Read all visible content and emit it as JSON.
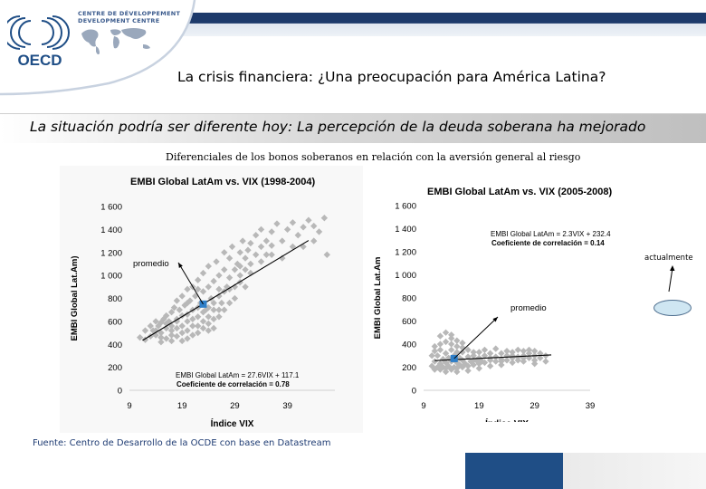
{
  "header": {
    "logo_text": "OECD",
    "centre_line1": "CENTRE DE DÉVELOPPEMENT",
    "centre_line2": "DEVELOPMENT CENTRE",
    "title": "La crisis financiera: ¿Una preocupación para América Latina?",
    "subtitle": "La situación podría ser diferente hoy:  La percepción de la deuda soberana ha mejorado"
  },
  "caption": "Diferenciales de los bonos soberanos en relación con la aversión general al riesgo",
  "source": "Fuente:  Centro de Desarrollo de la OCDE con base en Datastream",
  "annotation": {
    "now_label": "actualmente"
  },
  "colors": {
    "navy": "#1f4e86",
    "points": "#b8b8b8",
    "mean": "#2f7fc8",
    "line": "#000000"
  },
  "chart_data": [
    {
      "type": "scatter",
      "title": "EMBI Global LatAm vs.  VIX (1998-2004)",
      "xlabel": "Índice VIX",
      "ylabel": "EMBI Global Lat.Am)",
      "xlim": [
        9,
        48
      ],
      "ylim": [
        0,
        1600
      ],
      "xticks": [
        9,
        19,
        29,
        39
      ],
      "yticks": [
        0,
        200,
        400,
        600,
        800,
        1000,
        1200,
        1400,
        1600
      ],
      "ytick_labels": [
        "0",
        "200",
        "400",
        "600",
        "800",
        "1 000",
        "1 200",
        "1 400",
        "1 600"
      ],
      "regression": {
        "slope": 27.6,
        "intercept": 117.1,
        "x_range": [
          11.5,
          43
        ]
      },
      "equation_label": "EMBI Global LatAm = 27.6VIX + 117.1",
      "correlation_label": "Coeficiente de correlación = 0.78",
      "mean_point": {
        "x": 23,
        "y": 750,
        "label": "promedio"
      },
      "points": [
        [
          12,
          440
        ],
        [
          13,
          470
        ],
        [
          13.5,
          520
        ],
        [
          14,
          480
        ],
        [
          14.5,
          560
        ],
        [
          15,
          500
        ],
        [
          15,
          590
        ],
        [
          15.5,
          620
        ],
        [
          16,
          540
        ],
        [
          16,
          650
        ],
        [
          16.5,
          600
        ],
        [
          17,
          680
        ],
        [
          17,
          560
        ],
        [
          17.5,
          720
        ],
        [
          18,
          620
        ],
        [
          18,
          780
        ],
        [
          18.5,
          700
        ],
        [
          19,
          650
        ],
        [
          19,
          820
        ],
        [
          19.5,
          740
        ],
        [
          20,
          600
        ],
        [
          20,
          880
        ],
        [
          20.5,
          780
        ],
        [
          21,
          700
        ],
        [
          21,
          900
        ],
        [
          21.5,
          820
        ],
        [
          22,
          640
        ],
        [
          22,
          960
        ],
        [
          22.5,
          760
        ],
        [
          23,
          860
        ],
        [
          23,
          1020
        ],
        [
          23.5,
          700
        ],
        [
          24,
          900
        ],
        [
          24,
          1080
        ],
        [
          24.5,
          800
        ],
        [
          25,
          950
        ],
        [
          25,
          700
        ],
        [
          25.5,
          1120
        ],
        [
          26,
          880
        ],
        [
          26,
          1000
        ],
        [
          26.5,
          760
        ],
        [
          27,
          1050
        ],
        [
          27,
          1200
        ],
        [
          27.5,
          900
        ],
        [
          28,
          980
        ],
        [
          28,
          1150
        ],
        [
          28.5,
          1250
        ],
        [
          29,
          1050
        ],
        [
          29,
          900
        ],
        [
          29.5,
          1100
        ],
        [
          30,
          1200
        ],
        [
          30,
          1000
        ],
        [
          30.5,
          1300
        ],
        [
          31,
          1150
        ],
        [
          31,
          1050
        ],
        [
          31.5,
          1220
        ],
        [
          32,
          1280
        ],
        [
          32,
          1100
        ],
        [
          33,
          1180
        ],
        [
          33,
          1350
        ],
        [
          34,
          1250
        ],
        [
          34,
          1400
        ],
        [
          35,
          1300
        ],
        [
          35,
          1180
        ],
        [
          36,
          1380
        ],
        [
          36,
          1260
        ],
        [
          37,
          1450
        ],
        [
          38,
          1300
        ],
        [
          38,
          1150
        ],
        [
          39,
          1400
        ],
        [
          40,
          1250
        ],
        [
          41,
          1350
        ],
        [
          42,
          1420
        ],
        [
          43,
          1480
        ],
        [
          44,
          1300
        ],
        [
          45,
          1380
        ],
        [
          46,
          1500
        ],
        [
          46.5,
          1180
        ],
        [
          15,
          420
        ],
        [
          16,
          450
        ],
        [
          17,
          430
        ],
        [
          18,
          470
        ],
        [
          19,
          500
        ],
        [
          20,
          520
        ],
        [
          21,
          480
        ],
        [
          22,
          560
        ],
        [
          23,
          600
        ],
        [
          24,
          580
        ],
        [
          25,
          620
        ],
        [
          20,
          450
        ],
        [
          19,
          430
        ],
        [
          17,
          480
        ],
        [
          22,
          500
        ],
        [
          24,
          520
        ],
        [
          21,
          560
        ],
        [
          26,
          640
        ],
        [
          18,
          540
        ],
        [
          23,
          680
        ],
        [
          25,
          540
        ],
        [
          27,
          700
        ],
        [
          28,
          760
        ],
        [
          22,
          720
        ],
        [
          20,
          660
        ],
        [
          18,
          600
        ],
        [
          16,
          580
        ],
        [
          14,
          600
        ],
        [
          24,
          720
        ],
        [
          26,
          820
        ],
        [
          28,
          880
        ],
        [
          30,
          940
        ],
        [
          21,
          620
        ],
        [
          19,
          560
        ],
        [
          17,
          520
        ],
        [
          23,
          540
        ],
        [
          25,
          760
        ],
        [
          27,
          860
        ],
        [
          29,
          800
        ],
        [
          31,
          900
        ],
        [
          22,
          880
        ],
        [
          20,
          760
        ],
        [
          24,
          640
        ],
        [
          26,
          700
        ],
        [
          30,
          1080
        ],
        [
          32,
          1020
        ],
        [
          34,
          1120
        ],
        [
          36,
          1180
        ],
        [
          40,
          1460
        ],
        [
          42,
          1250
        ],
        [
          44,
          1430
        ],
        [
          13,
          560
        ],
        [
          14,
          520
        ],
        [
          15,
          460
        ],
        [
          12,
          520
        ],
        [
          11,
          460
        ]
      ]
    },
    {
      "type": "scatter",
      "title": "EMBI Global LatAm vs.  VIX (2005-2008)",
      "xlabel": "Índice VIX",
      "ylabel": "EMBI Global Lat.Am",
      "xlim": [
        9,
        39
      ],
      "ylim": [
        0,
        1600
      ],
      "xticks": [
        9,
        19,
        29,
        39
      ],
      "yticks": [
        0,
        200,
        400,
        600,
        800,
        1000,
        1200,
        1400,
        1600
      ],
      "ytick_labels": [
        "0",
        "200",
        "400",
        "600",
        "800",
        "1 000",
        "1 200",
        "1 400",
        "1 600"
      ],
      "regression": {
        "slope": 2.3,
        "intercept": 232.4,
        "x_range": [
          11,
          32
        ]
      },
      "equation_label": "EMBI Global LatAm = 2.3VIX + 232.4",
      "correlation_label": "Coeficiente de correlación = 0.14",
      "mean_point": {
        "x": 14.5,
        "y": 275,
        "label": "promedio"
      },
      "points": [
        [
          10.5,
          210
        ],
        [
          11,
          180
        ],
        [
          11,
          250
        ],
        [
          11.5,
          200
        ],
        [
          11.5,
          300
        ],
        [
          12,
          180
        ],
        [
          12,
          230
        ],
        [
          12,
          350
        ],
        [
          12.5,
          200
        ],
        [
          12.5,
          270
        ],
        [
          13,
          190
        ],
        [
          13,
          240
        ],
        [
          13,
          320
        ],
        [
          13,
          420
        ],
        [
          13.5,
          210
        ],
        [
          13.5,
          280
        ],
        [
          14,
          180
        ],
        [
          14,
          250
        ],
        [
          14,
          350
        ],
        [
          14,
          450
        ],
        [
          14.5,
          200
        ],
        [
          14.5,
          300
        ],
        [
          15,
          190
        ],
        [
          15,
          240
        ],
        [
          15,
          380
        ],
        [
          15.5,
          220
        ],
        [
          15.5,
          280
        ],
        [
          16,
          200
        ],
        [
          16,
          260
        ],
        [
          16,
          330
        ],
        [
          16.5,
          230
        ],
        [
          17,
          210
        ],
        [
          17,
          290
        ],
        [
          17.5,
          250
        ],
        [
          18,
          220
        ],
        [
          18,
          300
        ],
        [
          18.5,
          260
        ],
        [
          19,
          230
        ],
        [
          19,
          280
        ],
        [
          19.5,
          250
        ],
        [
          20,
          240
        ],
        [
          20,
          300
        ],
        [
          21,
          260
        ],
        [
          21,
          320
        ],
        [
          22,
          250
        ],
        [
          22,
          290
        ],
        [
          23,
          270
        ],
        [
          23,
          320
        ],
        [
          24,
          260
        ],
        [
          24,
          300
        ],
        [
          25,
          280
        ],
        [
          25,
          330
        ],
        [
          26,
          290
        ],
        [
          26,
          260
        ],
        [
          27,
          300
        ],
        [
          27,
          340
        ],
        [
          28,
          280
        ],
        [
          28,
          320
        ],
        [
          29,
          300
        ],
        [
          29,
          260
        ],
        [
          30,
          320
        ],
        [
          30,
          280
        ],
        [
          31,
          300
        ],
        [
          12,
          470
        ],
        [
          13,
          500
        ],
        [
          14,
          480
        ],
        [
          15,
          430
        ],
        [
          12,
          400
        ],
        [
          11,
          380
        ],
        [
          16,
          410
        ],
        [
          17,
          350
        ],
        [
          18,
          330
        ],
        [
          20,
          350
        ],
        [
          22,
          360
        ],
        [
          24,
          340
        ],
        [
          26,
          350
        ],
        [
          28,
          350
        ],
        [
          13,
          160
        ],
        [
          15,
          160
        ],
        [
          17,
          170
        ],
        [
          19,
          190
        ],
        [
          21,
          210
        ],
        [
          23,
          220
        ],
        [
          25,
          240
        ],
        [
          27,
          250
        ],
        [
          29,
          230
        ],
        [
          31,
          250
        ],
        [
          10.5,
          300
        ],
        [
          11,
          340
        ],
        [
          14,
          400
        ],
        [
          15,
          330
        ],
        [
          16,
          370
        ],
        [
          18,
          260
        ],
        [
          19,
          330
        ],
        [
          21,
          280
        ],
        [
          23,
          250
        ],
        [
          25,
          300
        ],
        [
          27,
          280
        ],
        [
          29,
          340
        ]
      ]
    }
  ]
}
